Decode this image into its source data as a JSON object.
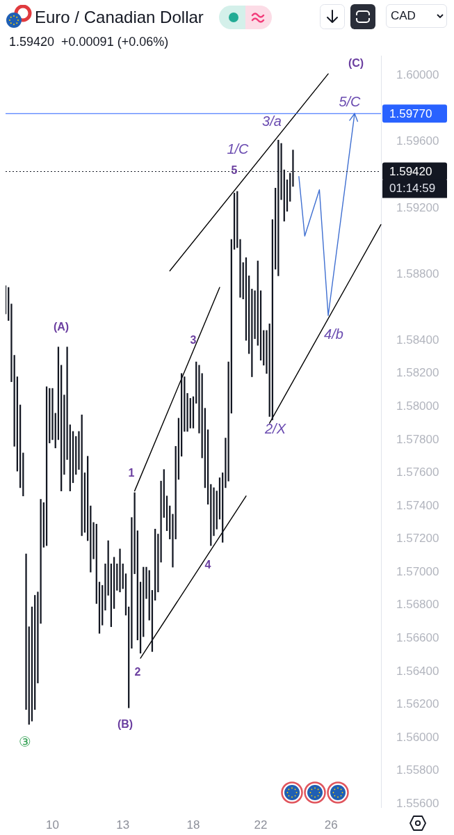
{
  "chart_data": {
    "type": "bar",
    "title": "Euro / Canadian Dollar",
    "subtitle": "1.59420  +0.00091 (+0.06%)",
    "categories": [
      null,
      null,
      null,
      null,
      null,
      null,
      null,
      null,
      null,
      null,
      null,
      null,
      null,
      null,
      null,
      null,
      "10",
      null,
      null,
      null,
      null,
      null,
      null,
      null,
      null,
      null,
      null,
      null,
      null,
      null,
      null,
      null,
      null,
      null,
      null,
      null,
      null,
      null,
      null,
      null,
      "13",
      null,
      null,
      null,
      null,
      null,
      null,
      null,
      null,
      null,
      null,
      null,
      null,
      null,
      null,
      null,
      null,
      null,
      null,
      null,
      null,
      null,
      null,
      null,
      "18",
      null,
      null,
      null,
      null,
      null,
      null,
      null,
      null,
      null,
      null,
      null,
      null,
      null,
      null,
      null,
      null,
      null,
      null,
      null,
      null,
      null,
      null,
      "22",
      null,
      null,
      null,
      null,
      null,
      null,
      null,
      null,
      null,
      null,
      null,
      null,
      null,
      null,
      null,
      null,
      null,
      null,
      null,
      null,
      null,
      null,
      null,
      "26",
      null,
      null,
      null,
      null,
      null,
      null,
      null,
      null,
      null,
      null,
      null,
      null,
      null,
      null,
      null,
      null,
      null
    ],
    "series": [
      {
        "color": "#131722",
        "base": [
          1.5856,
          1.5852,
          1.5815,
          1.5776,
          1.5761,
          1.5751,
          1.5746,
          1.5617,
          1.5608,
          1.561,
          1.5617,
          1.5633,
          1.5669,
          1.5715,
          1.5716,
          1.5778,
          1.578,
          1.5775,
          1.578,
          1.5749,
          1.5759,
          1.5768,
          1.5749,
          1.5754,
          1.5759,
          1.5762,
          1.5722,
          1.5724,
          1.5719,
          1.57,
          1.5708,
          1.5681,
          1.5663,
          1.5668,
          1.5677,
          1.5686,
          1.5667,
          1.5678,
          1.5689,
          1.5688,
          1.569,
          1.5674,
          1.5618,
          1.5654,
          1.5699,
          1.5659,
          1.5651,
          1.5661,
          1.5684,
          1.5671,
          1.5652,
          1.5683,
          1.5688,
          1.5706,
          1.5733,
          1.5725,
          1.572,
          1.5703,
          1.572,
          1.5756,
          1.577,
          1.5785,
          1.5785,
          1.5787,
          1.5787,
          1.5802,
          1.5784,
          1.5769,
          1.5751,
          1.5741,
          1.5716,
          1.5722,
          1.5726,
          1.5732,
          1.5718,
          1.5751,
          1.5755,
          1.5796,
          1.5895,
          1.5896,
          1.5866,
          1.5865,
          1.584,
          1.5832,
          1.5818,
          1.5841,
          1.5837,
          1.5828,
          1.5825,
          1.582,
          1.5794,
          1.5792,
          1.5883,
          1.5879,
          1.5925,
          1.5912,
          1.5918,
          1.5924,
          1.5933,
          null,
          null,
          null,
          null,
          null,
          null,
          null,
          null,
          null,
          null,
          null,
          null,
          null,
          null,
          null,
          null,
          null,
          null,
          null,
          null,
          null,
          null,
          null,
          null,
          null,
          null,
          null,
          null,
          null,
          null
        ],
        "values": [
          0.0017,
          0.002,
          0.0047,
          0.0055,
          0.0057,
          0.005,
          0.0026,
          0.0094,
          0.0059,
          0.0069,
          0.0069,
          0.0055,
          0.0075,
          0.0027,
          0.0096,
          0.0033,
          0.0031,
          0.0021,
          0.0056,
          0.0076,
          0.0048,
          0.0068,
          0.004,
          0.0031,
          0.0023,
          0.0023,
          0.0073,
          0.0036,
          0.0051,
          0.004,
          0.0022,
          0.0048,
          0.0031,
          0.0024,
          0.0028,
          0.0033,
          0.0038,
          0.0031,
          0.0016,
          0.0026,
          0.0015,
          0.0025,
          0.0061,
          0.0079,
          0.0049,
          0.0066,
          0.0043,
          0.0042,
          0.0019,
          0.003,
          0.0037,
          0.0043,
          0.0035,
          0.0049,
          0.0029,
          0.0021,
          0.002,
          0.0032,
          0.0056,
          0.0037,
          0.005,
          0.0033,
          0.0023,
          0.0018,
          0.0019,
          0.0025,
          0.0041,
          0.0051,
          0.0048,
          0.0045,
          0.0037,
          0.0029,
          0.0023,
          0.0025,
          0.0042,
          0.003,
          0.0072,
          0.0105,
          0.0034,
          0.0034,
          0.0035,
          0.0022,
          0.005,
          0.0047,
          0.0053,
          0.0029,
          0.0051,
          0.0042,
          0.0021,
          0.0026,
          0.0056,
          0.0121,
          0.0049,
          0.0082,
          0.0034,
          0.0031,
          0.0019,
          0.0017,
          0.0022,
          null,
          null,
          null,
          null,
          null,
          null,
          null,
          null,
          null,
          null,
          null,
          null,
          null,
          null,
          null,
          null,
          null,
          null,
          null,
          null,
          null,
          null,
          null,
          null,
          null,
          null,
          null,
          null,
          null,
          null
        ]
      },
      {
        "type": "line",
        "color": "#000000",
        "values": [
          null,
          null,
          null,
          null,
          null,
          null,
          null,
          null,
          null,
          null,
          null,
          null,
          null,
          null,
          null,
          null,
          null,
          null,
          null,
          null,
          null,
          null,
          null,
          null,
          null,
          null,
          null,
          null,
          null,
          null,
          null,
          null,
          null,
          null,
          null,
          null,
          null,
          null,
          null,
          null,
          null,
          null,
          null,
          null,
          null,
          null,
          null,
          null,
          null,
          null,
          null,
          null,
          null,
          null,
          null,
          null,
          1.5882,
          null,
          null,
          null,
          null,
          null,
          null,
          null,
          null,
          null,
          null,
          null,
          null,
          null,
          null,
          null,
          null,
          null,
          null,
          null,
          null,
          null,
          null,
          null,
          null,
          null,
          null,
          null,
          null,
          null,
          null,
          null,
          null,
          null,
          null,
          null,
          null,
          null,
          null,
          null,
          null,
          null,
          null,
          null,
          null,
          null,
          null,
          null,
          null,
          null,
          null,
          null,
          null,
          null,
          1.6001,
          null,
          null,
          null,
          null,
          null,
          null,
          null,
          null,
          null,
          null,
          null,
          null,
          null,
          null,
          null,
          null,
          null,
          null
        ]
      },
      {
        "type": "line",
        "color": "#000000",
        "values": [
          null,
          null,
          null,
          null,
          null,
          null,
          null,
          null,
          null,
          null,
          null,
          null,
          null,
          null,
          null,
          null,
          null,
          null,
          null,
          null,
          null,
          null,
          null,
          null,
          null,
          null,
          null,
          null,
          null,
          null,
          null,
          null,
          null,
          null,
          null,
          null,
          null,
          null,
          null,
          null,
          null,
          null,
          null,
          null,
          null,
          null,
          null,
          null,
          null,
          null,
          null,
          null,
          null,
          null,
          null,
          null,
          null,
          null,
          null,
          null,
          null,
          null,
          null,
          null,
          null,
          null,
          null,
          null,
          null,
          null,
          null,
          null,
          null,
          null,
          null,
          null,
          null,
          null,
          null,
          null,
          null,
          null,
          null,
          null,
          null,
          null,
          null,
          null,
          null,
          null,
          1.579,
          null,
          null,
          null,
          null,
          null,
          null,
          null,
          null,
          null,
          null,
          null,
          null,
          null,
          null,
          null,
          null,
          null,
          null,
          null,
          null,
          null,
          null,
          null,
          null,
          null,
          null,
          null,
          null,
          null,
          null,
          null,
          null,
          null,
          null,
          null,
          null,
          null,
          1.591
        ]
      },
      {
        "type": "line",
        "color": "#000000",
        "values": [
          null,
          null,
          null,
          null,
          null,
          null,
          null,
          null,
          null,
          null,
          null,
          null,
          null,
          null,
          null,
          null,
          null,
          null,
          null,
          null,
          null,
          null,
          null,
          null,
          null,
          null,
          null,
          null,
          null,
          null,
          null,
          null,
          null,
          null,
          null,
          null,
          null,
          null,
          null,
          null,
          null,
          null,
          null,
          null,
          1.5749,
          null,
          null,
          null,
          null,
          null,
          null,
          null,
          null,
          null,
          null,
          null,
          null,
          null,
          null,
          null,
          null,
          null,
          null,
          null,
          null,
          null,
          null,
          null,
          null,
          null,
          null,
          null,
          null,
          1.5872,
          null,
          null,
          null,
          null,
          null,
          null,
          null,
          null,
          null,
          null,
          null,
          null,
          null,
          null,
          null,
          null,
          null,
          null,
          null,
          null,
          null,
          null,
          null,
          null,
          null,
          null,
          null,
          null,
          null,
          null,
          null,
          null,
          null,
          null,
          null,
          null,
          null,
          null,
          null,
          null,
          null,
          null,
          null,
          null,
          null,
          null,
          null,
          null,
          null,
          null,
          null,
          null,
          null,
          null,
          null
        ]
      },
      {
        "type": "line",
        "color": "#000000",
        "values": [
          null,
          null,
          null,
          null,
          null,
          null,
          null,
          null,
          null,
          null,
          null,
          null,
          null,
          null,
          null,
          null,
          null,
          null,
          null,
          null,
          null,
          null,
          null,
          null,
          null,
          null,
          null,
          null,
          null,
          null,
          null,
          null,
          null,
          null,
          null,
          null,
          null,
          null,
          null,
          null,
          null,
          null,
          null,
          null,
          null,
          null,
          1.5648,
          null,
          null,
          null,
          null,
          null,
          null,
          null,
          null,
          null,
          null,
          null,
          null,
          null,
          null,
          null,
          null,
          null,
          null,
          null,
          null,
          null,
          null,
          null,
          null,
          null,
          null,
          null,
          null,
          null,
          null,
          null,
          null,
          null,
          null,
          null,
          1.5746,
          null,
          null,
          null,
          null,
          null,
          null,
          null,
          null,
          null,
          null,
          null,
          null,
          null,
          null,
          null,
          null,
          null,
          null,
          null,
          null,
          null,
          null,
          null,
          null,
          null,
          null,
          null,
          null,
          null,
          null,
          null,
          null,
          null,
          null,
          null,
          null,
          null,
          null,
          null,
          null,
          null,
          null,
          null,
          null,
          null,
          null
        ]
      },
      {
        "type": "line",
        "color": "#3f6fd1",
        "values": [
          null,
          null,
          null,
          null,
          null,
          null,
          null,
          null,
          null,
          null,
          null,
          null,
          null,
          null,
          null,
          null,
          null,
          null,
          null,
          null,
          null,
          null,
          null,
          null,
          null,
          null,
          null,
          null,
          null,
          null,
          null,
          null,
          null,
          null,
          null,
          null,
          null,
          null,
          null,
          null,
          null,
          null,
          null,
          null,
          null,
          null,
          null,
          null,
          null,
          null,
          null,
          null,
          null,
          null,
          null,
          null,
          null,
          null,
          null,
          null,
          null,
          null,
          null,
          null,
          null,
          null,
          null,
          null,
          null,
          null,
          null,
          null,
          null,
          null,
          null,
          null,
          null,
          null,
          null,
          null,
          null,
          null,
          null,
          null,
          null,
          null,
          null,
          null,
          null,
          null,
          null,
          null,
          null,
          null,
          null,
          null,
          null,
          null,
          null,
          null,
          1.5939,
          null,
          1.5903,
          null,
          null,
          null,
          null,
          1.5931,
          null,
          null,
          1.5855,
          null,
          null,
          null,
          null,
          null,
          null,
          null,
          null,
          1.5977,
          null,
          null,
          null,
          null,
          null,
          null,
          null,
          null,
          null
        ]
      }
    ],
    "ylim": [
      1.5558,
      1.6012
    ],
    "yticks": [
      {
        "value": 1.6,
        "label": "1.60000"
      },
      {
        "value": 1.596,
        "label": "1.59600"
      },
      {
        "value": 1.592,
        "label": "1.59200"
      },
      {
        "value": 1.588,
        "label": "1.58800"
      },
      {
        "value": 1.584,
        "label": "1.58400"
      },
      {
        "value": 1.582,
        "label": "1.58200"
      },
      {
        "value": 1.58,
        "label": "1.58000"
      },
      {
        "value": 1.578,
        "label": "1.57800"
      },
      {
        "value": 1.576,
        "label": "1.57600"
      },
      {
        "value": 1.574,
        "label": "1.57400"
      },
      {
        "value": 1.572,
        "label": "1.57200"
      },
      {
        "value": 1.57,
        "label": "1.57000"
      },
      {
        "value": 1.568,
        "label": "1.56800"
      },
      {
        "value": 1.566,
        "label": "1.56600"
      },
      {
        "value": 1.564,
        "label": "1.56400"
      },
      {
        "value": 1.562,
        "label": "1.56200"
      },
      {
        "value": 1.56,
        "label": "1.56000"
      },
      {
        "value": 1.558,
        "label": "1.55800"
      },
      {
        "value": 1.556,
        "label": "1.55600"
      }
    ],
    "ref_lines": [
      {
        "axis": "y",
        "value": 1.5977,
        "label": "1.59770",
        "color": "#2962ff",
        "line_style": "solid"
      },
      {
        "axis": "y",
        "value": 1.5942,
        "label": "1.59420",
        "color": "#131722",
        "line_style": "dotted"
      }
    ],
    "annotations": [
      "(C)",
      "5/C",
      "3/a",
      "1/C",
      "5",
      "(A)",
      "3",
      "4/b",
      "2/X",
      "1",
      "4",
      "2",
      "(B)",
      "③",
      "01:14:59",
      "CAD"
    ]
  }
}
